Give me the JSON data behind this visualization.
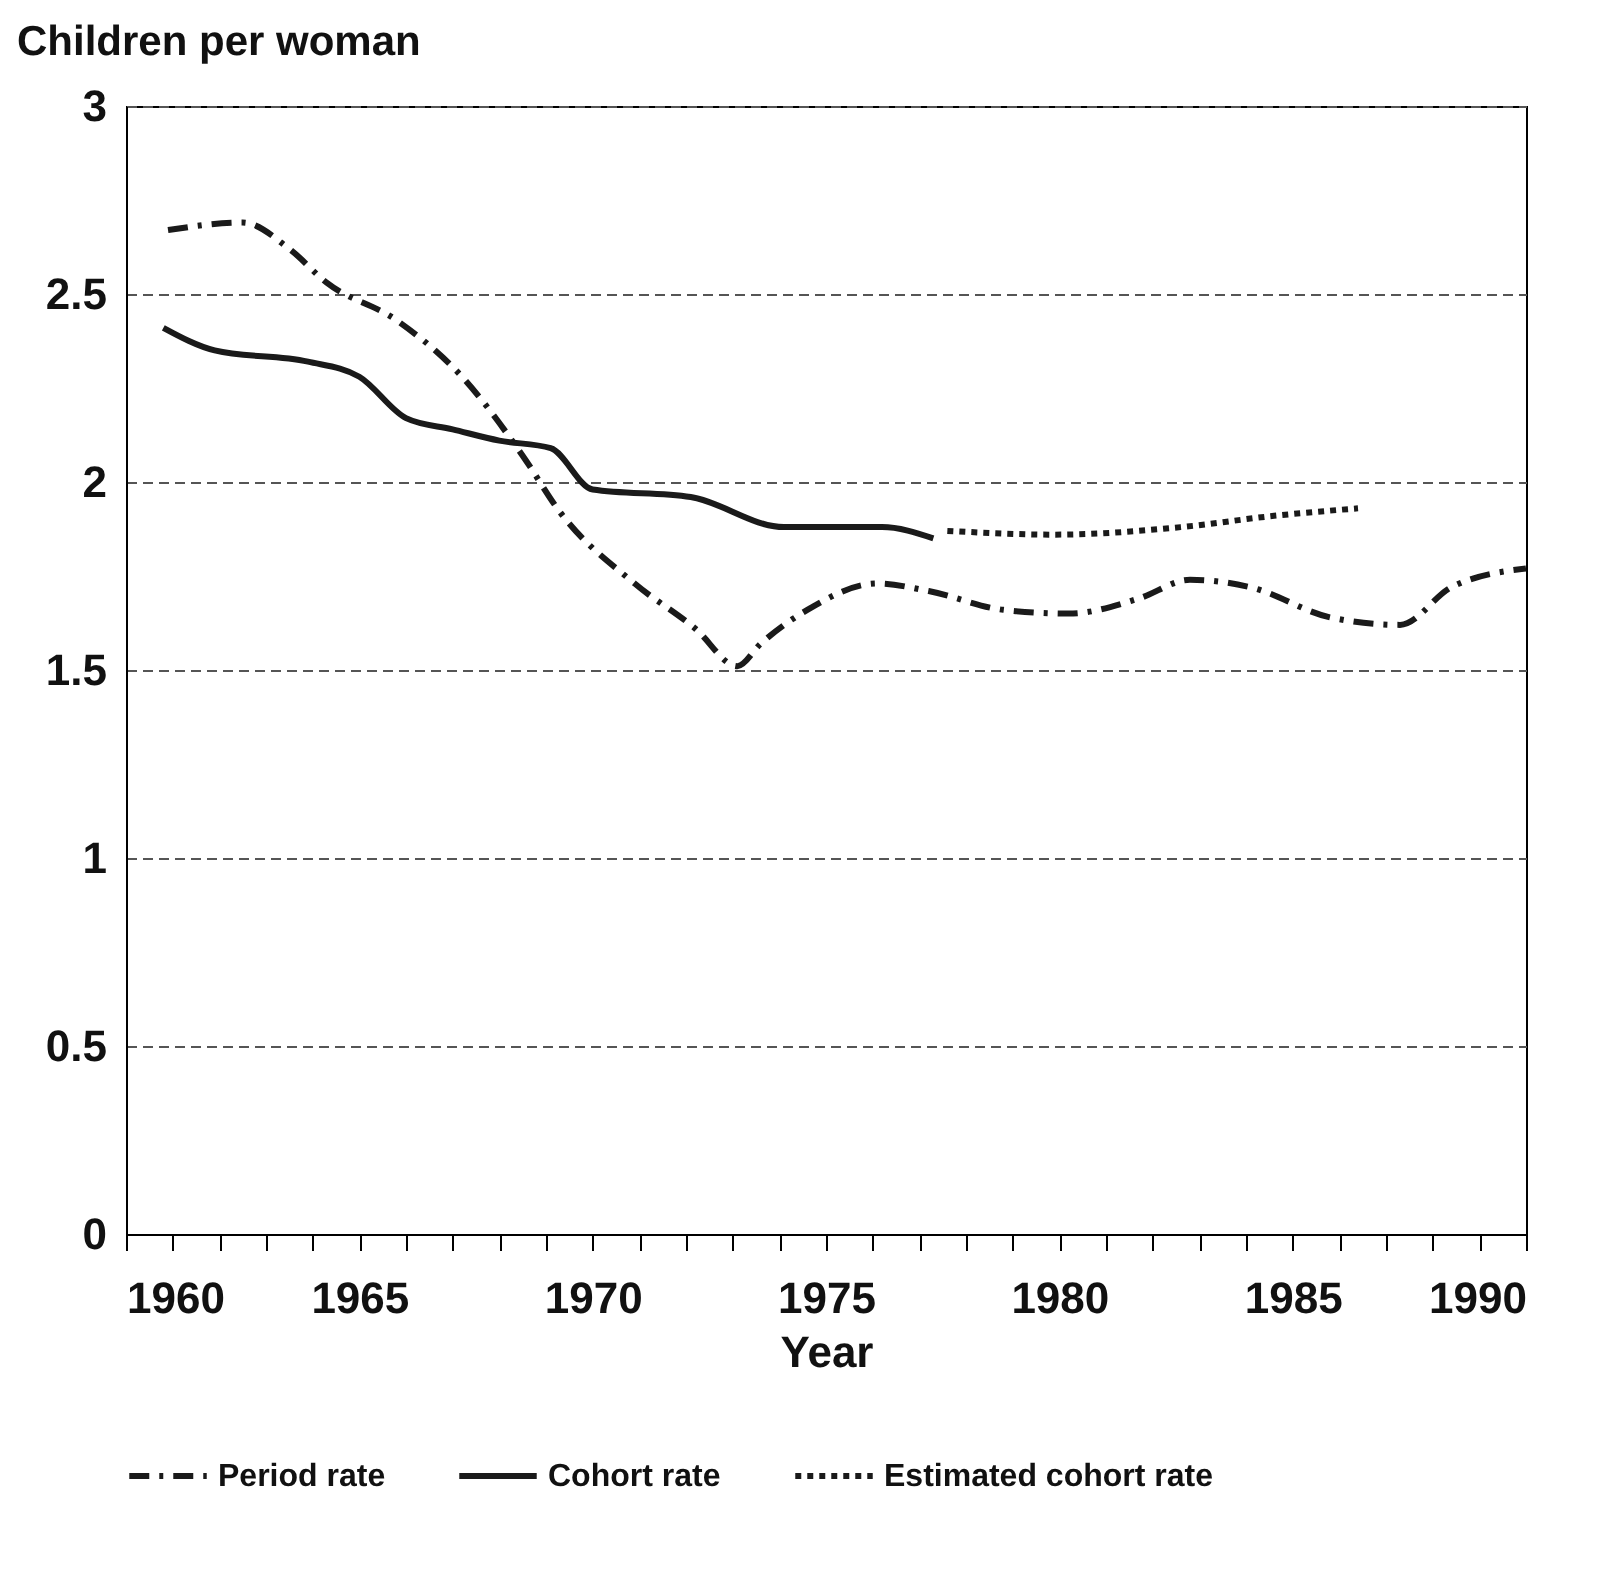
{
  "chart_data": {
    "type": "line",
    "ylabel": "Children per woman",
    "xlabel": "Year",
    "xlim": [
      1960,
      1990
    ],
    "ylim": [
      0,
      3
    ],
    "xticks": [
      1960,
      {
        "value": 1961,
        "label": null
      },
      {
        "value": 1962,
        "label": null
      },
      {
        "value": 1963,
        "label": null
      },
      {
        "value": 1964,
        "label": null
      },
      1965,
      {
        "value": 1966,
        "label": null
      },
      {
        "value": 1967,
        "label": null
      },
      {
        "value": 1968,
        "label": null
      },
      {
        "value": 1969,
        "label": null
      },
      1970,
      {
        "value": 1971,
        "label": null
      },
      {
        "value": 1972,
        "label": null
      },
      {
        "value": 1973,
        "label": null
      },
      {
        "value": 1974,
        "label": null
      },
      1975,
      {
        "value": 1976,
        "label": null
      },
      {
        "value": 1977,
        "label": null
      },
      {
        "value": 1978,
        "label": null
      },
      {
        "value": 1979,
        "label": null
      },
      1980,
      {
        "value": 1981,
        "label": null
      },
      {
        "value": 1982,
        "label": null
      },
      {
        "value": 1983,
        "label": null
      },
      {
        "value": 1984,
        "label": null
      },
      1985,
      {
        "value": 1986,
        "label": null
      },
      {
        "value": 1987,
        "label": null
      },
      {
        "value": 1988,
        "label": null
      },
      {
        "value": 1989,
        "label": null
      },
      1990
    ],
    "yticks": [
      0,
      0.5,
      1,
      1.5,
      2,
      2.5,
      3
    ],
    "grid": "y",
    "legend": "bottom",
    "series": [
      {
        "name": "Period rate",
        "color": "#1a1a1a",
        "line_style": "dashed",
        "x": [
          1960.9,
          1962.5,
          1963.5,
          1964.3,
          1965.8,
          1967.2,
          1968.5,
          1969.3,
          1970.9,
          1972.2,
          1973.1,
          1973.6,
          1974.6,
          1976.1,
          1977.2,
          1978.8,
          1980.2,
          1981.7,
          1982.8,
          1984.1,
          1985.8,
          1987.3,
          1988.4,
          1990
        ],
        "values": [
          2.67,
          2.69,
          2.62,
          2.53,
          2.43,
          2.28,
          2.07,
          1.92,
          1.73,
          1.61,
          1.51,
          1.57,
          1.66,
          1.73,
          1.71,
          1.66,
          1.65,
          1.69,
          1.74,
          1.72,
          1.64,
          1.62,
          1.72,
          1.77
        ]
      },
      {
        "name": "Cohort rate",
        "color": "#1a1a1a",
        "line_style": "solid",
        "x": [
          1960.8,
          1961.9,
          1963.9,
          1965,
          1966,
          1967,
          1968,
          1969.1,
          1970,
          1972.1,
          1974.1,
          1976.2,
          1977.3
        ],
        "values": [
          2.41,
          2.35,
          2.32,
          2.28,
          2.17,
          2.14,
          2.11,
          2.09,
          1.98,
          1.96,
          1.88,
          1.88,
          1.85
        ]
      },
      {
        "name": "Estimated cohort rate",
        "color": "#1a1a1a",
        "line_style": "dotted",
        "x": [
          1977.6,
          1979.9,
          1982.6,
          1984.6,
          1986.4
        ],
        "values": [
          1.87,
          1.86,
          1.88,
          1.91,
          1.93
        ]
      }
    ]
  }
}
